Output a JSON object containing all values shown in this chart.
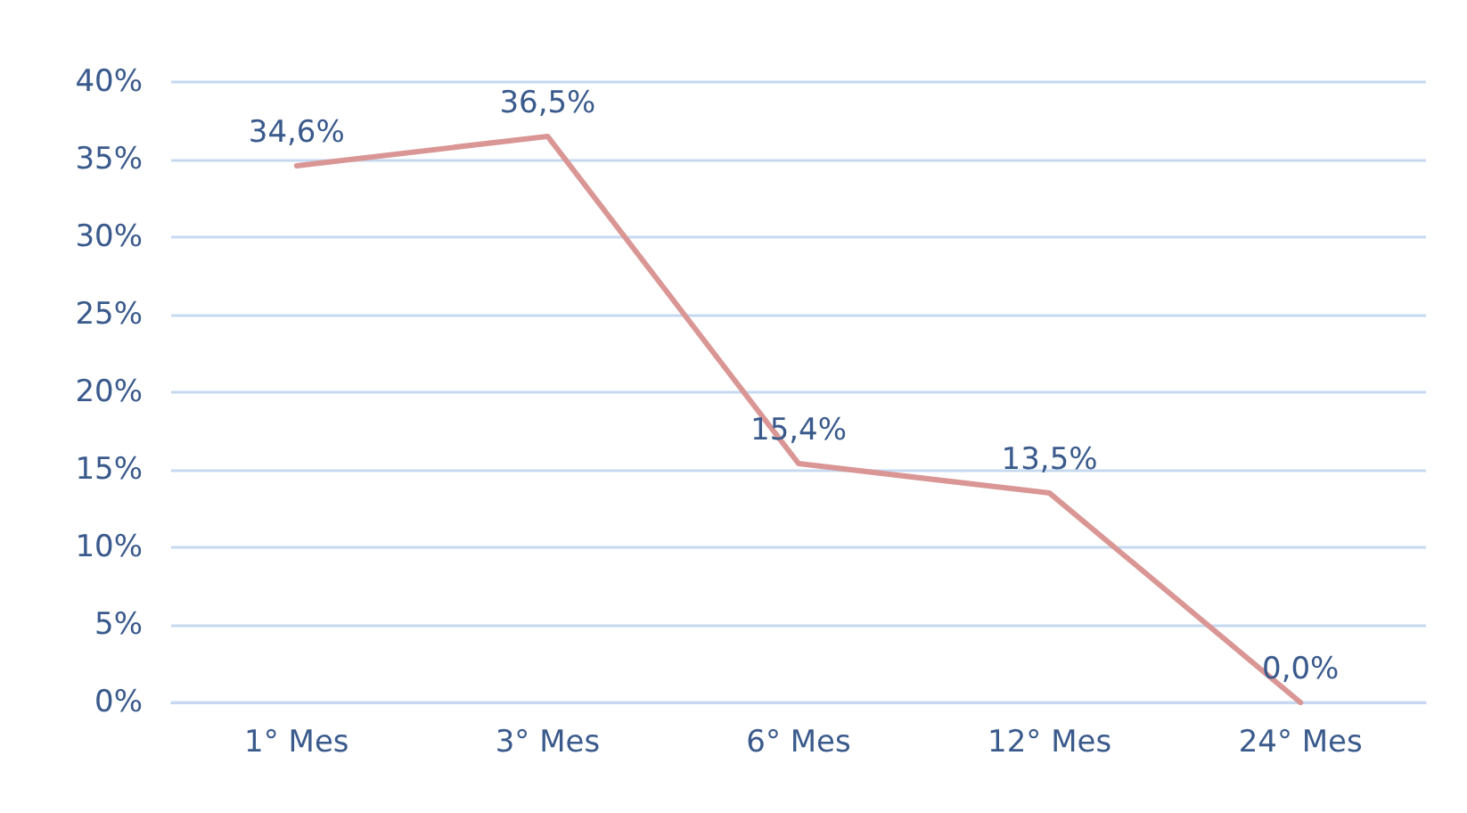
{
  "chart_data": {
    "type": "line",
    "categories": [
      "1° Mes",
      "3° Mes",
      "6° Mes",
      "12° Mes",
      "24° Mes"
    ],
    "values": [
      34.6,
      36.5,
      15.4,
      13.5,
      0.0
    ],
    "value_labels": [
      "34,6%",
      "36,5%",
      "15,4%",
      "13,5%",
      "0,0%"
    ],
    "color": "#d99694",
    "ylim": [
      0,
      40
    ],
    "yticks": [
      {
        "value": 0,
        "label": "0%"
      },
      {
        "value": 5,
        "label": "5%"
      },
      {
        "value": 10,
        "label": "10%"
      },
      {
        "value": 15,
        "label": "15%"
      },
      {
        "value": 20,
        "label": "20%"
      },
      {
        "value": 25,
        "label": "25%"
      },
      {
        "value": 30,
        "label": "30%"
      },
      {
        "value": 35,
        "label": "35%"
      },
      {
        "value": 40,
        "label": "40%"
      }
    ],
    "grid": "y",
    "marker": "none",
    "line_style": "solid"
  }
}
